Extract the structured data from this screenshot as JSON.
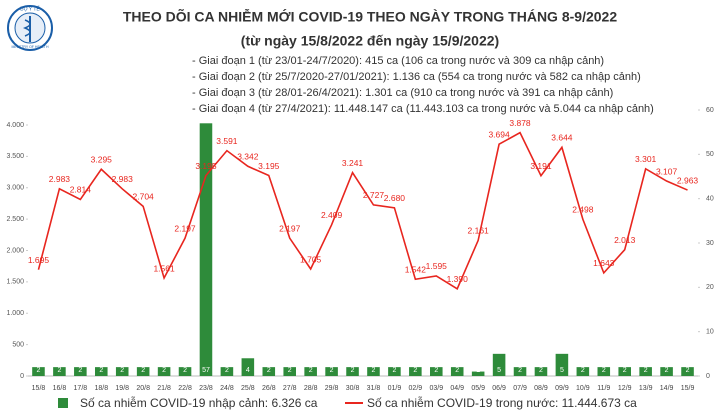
{
  "header": {
    "org": "BỘ Y TẾ",
    "org_en": "MINISTRY OF HEALTH"
  },
  "chart_data": {
    "type": "combo",
    "title": "THEO DÕI CA NHIỄM MỚI COVID-19 THEO NGÀY TRONG THÁNG 8-9/2022",
    "subtitle": "(từ ngày 15/8/2022 đến ngày 15/9/2022)",
    "annotations": [
      "- Giai đoạn 1 (từ 23/01-24/7/2020): 415 ca (106 ca trong nước và 309 ca nhập cảnh)",
      "- Giai đoạn 2 (từ 25/7/2020-27/01/2021): 1.136 ca (554 ca trong nước và 582 ca nhập cảnh)",
      "- Giai đoạn 3 (từ 28/01-26/4/2021): 1.301 ca (910 ca trong nước và 391 ca nhập cảnh)",
      "- Giai đoạn 4 (từ 27/4/2021): 11.448.147 ca (11.443.103 ca trong nước và 5.044 ca nhập cảnh)"
    ],
    "categories": [
      "15/8",
      "16/8",
      "17/8",
      "18/8",
      "19/8",
      "20/8",
      "21/8",
      "22/8",
      "23/8",
      "24/8",
      "25/8",
      "26/8",
      "27/8",
      "28/8",
      "29/8",
      "30/8",
      "31/8",
      "01/9",
      "02/9",
      "03/9",
      "04/9",
      "05/9",
      "06/9",
      "07/9",
      "08/9",
      "09/9",
      "10/9",
      "11/9",
      "12/9",
      "13/9",
      "14/9",
      "15/9"
    ],
    "ylim": [
      0,
      4000
    ],
    "yticks": [
      {
        "value": 0,
        "label": "0"
      },
      {
        "value": 500,
        "label": "500"
      },
      {
        "value": 1000,
        "label": "1.000"
      },
      {
        "value": 1500,
        "label": "1.500"
      },
      {
        "value": 2000,
        "label": "2.000"
      },
      {
        "value": 2500,
        "label": "2.500"
      },
      {
        "value": 3000,
        "label": "3.000"
      },
      {
        "value": 3500,
        "label": "3.500"
      },
      {
        "value": 4000,
        "label": "4.000"
      }
    ],
    "y2lim": [
      0,
      60
    ],
    "y2ticks": [
      0,
      10,
      20,
      30,
      40,
      50,
      60
    ],
    "series": [
      {
        "name": "Số ca nhiễm COVID-19 nhập cảnh: 6.326 ca",
        "type": "bar",
        "axis": "y2",
        "color": "#2e8b3a",
        "values": [
          2,
          2,
          2,
          2,
          2,
          2,
          2,
          2,
          57,
          2,
          4,
          2,
          2,
          2,
          2,
          2,
          2,
          2,
          2,
          2,
          2,
          1,
          5,
          2,
          2,
          5,
          2,
          2,
          2,
          2,
          2,
          2
        ]
      },
      {
        "name": "Số ca nhiễm COVID-19 trong nước: 11.444.673 ca",
        "type": "line",
        "color": "#e8261f",
        "values": [
          1695,
          2983,
          2814,
          3295,
          2983,
          2704,
          1561,
          2197,
          3195,
          3591,
          3342,
          3195,
          2197,
          1705,
          2409,
          3241,
          2727,
          2680,
          1542,
          1595,
          1390,
          2161,
          3694,
          3878,
          3191,
          3644,
          2498,
          1643,
          2013,
          3301,
          3107,
          2963
        ],
        "value_labels": [
          "1.695",
          "2.983",
          "2.814",
          "3.295",
          "2.983",
          "2.704",
          "1.561",
          "2.197",
          "3.195",
          "3.591",
          "3.342",
          "3.195",
          "2.197",
          "1.705",
          "2.409",
          "3.241",
          "2.727",
          "2.680",
          "1.542",
          "1.595",
          "1.390",
          "2.161",
          "3.694",
          "3.878",
          "3.191",
          "3.644",
          "2.498",
          "1.643",
          "2.013",
          "3.301",
          "3.107",
          "2.963"
        ]
      }
    ]
  }
}
